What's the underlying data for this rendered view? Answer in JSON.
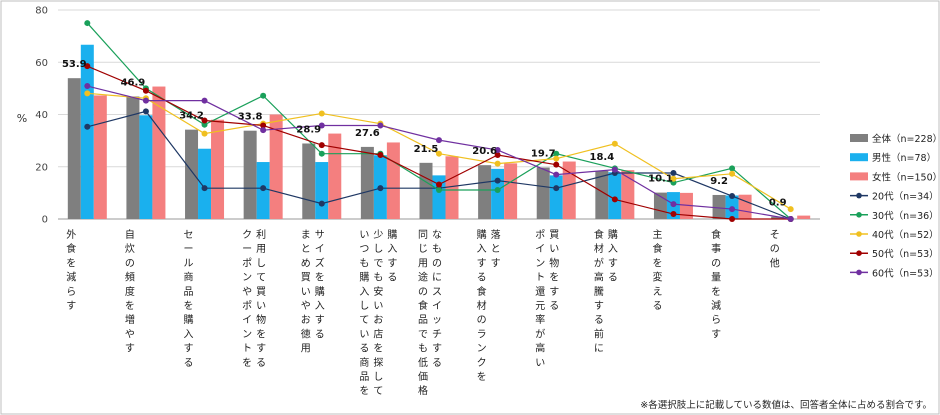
{
  "chart_data": {
    "type": "bar+line",
    "ylabel": "%",
    "ylim": [
      0,
      80
    ],
    "yticks": [
      0,
      20,
      40,
      60,
      80
    ],
    "grid": true,
    "legend_position": "right",
    "categories": [
      "外\n食\nを\n減\nら\nす",
      "自\n炊\nの\n頻\n度\nを\n増\nや\nす",
      "セ\nー\nル\n商\n品\nを\n購\n入\nす\nる",
      "ク\nー\nポ\nン\nや\nポ\nイ\nン\nト\nを|利\n用\nし\nて\n買\nい\n物\nを\nす\nる",
      "ま\nと\nめ\n買\nい\nや\nお\n徳\n用|サ\nイ\nズ\nを\n購\n入\nす\nる",
      "い\nつ\nも\n購\n入\nし\nて\nい\nる\n商\n品\nを|少\nし\nで\nも\n安\nい\nお\n店\nを\n探\nし\nて|購\n入\nす\nる",
      "同\nじ\n用\n途\nの\n食\n品\nで\nも\n低\n価\n格|な\nも\nの\nに\nス\nイ\nッ\nチ\nす\nる",
      "購\n入\nす\nる\n食\n材\nの\nラ\nン\nク\nを|落\nと\nす",
      "ポ\nイ\nン\nト\n還\n元\n率\nが\n高\nい|買\nい\n物\nを\nす\nる",
      "食\n材\nが\n高\n騰\nす\nる\n前\nに|購\n入\nす\nる",
      "主\n食\nを\n変\nえ\nる",
      "食\n事\nの\n量\nを\n減\nら\nす",
      "そ\nの\n他"
    ],
    "data_labels": [
      "53.9",
      "46.9",
      "34.2",
      "33.8",
      "28.9",
      "27.6",
      "21.5",
      "20.6",
      "19.7",
      "18.4",
      "10.1",
      "9.2",
      "0.9"
    ],
    "bar_series": [
      {
        "name": "全体（n=228）",
        "color": "#7f7f7f",
        "values": [
          53.9,
          46.9,
          34.2,
          33.8,
          28.9,
          27.6,
          21.5,
          20.6,
          19.7,
          18.4,
          10.1,
          9.2,
          0.9
        ]
      },
      {
        "name": "男性（n=78）",
        "color": "#1ab0ee",
        "values": [
          66.7,
          39.7,
          26.9,
          21.8,
          21.8,
          24.4,
          16.7,
          19.2,
          16.7,
          17.9,
          10.3,
          9.0,
          0.0
        ]
      },
      {
        "name": "女性（n=150）",
        "color": "#f47f7f",
        "values": [
          47.3,
          50.7,
          38.0,
          40.0,
          32.7,
          29.3,
          24.0,
          21.3,
          22.0,
          18.7,
          10.0,
          9.3,
          1.3
        ]
      }
    ],
    "line_series": [
      {
        "name": "20代（n=34）",
        "color": "#1f3864",
        "values": [
          35.3,
          41.2,
          11.8,
          11.8,
          5.9,
          11.8,
          11.8,
          14.7,
          11.8,
          17.6,
          17.6,
          8.8,
          0.0
        ]
      },
      {
        "name": "30代（n=36）",
        "color": "#1aa05a",
        "values": [
          75.0,
          50.0,
          36.1,
          47.2,
          25.0,
          25.0,
          11.1,
          11.1,
          25.0,
          19.4,
          13.9,
          19.4,
          0.0
        ]
      },
      {
        "name": "40代（n=52）",
        "color": "#f0c020",
        "values": [
          48.1,
          46.2,
          32.7,
          36.5,
          40.4,
          36.5,
          25.0,
          21.2,
          23.1,
          28.8,
          15.4,
          17.3,
          3.8
        ]
      },
      {
        "name": "50代（n=53）",
        "color": "#a00000",
        "values": [
          58.5,
          49.1,
          37.7,
          35.8,
          28.3,
          24.5,
          13.2,
          24.5,
          20.8,
          7.5,
          1.9,
          0.0,
          0.0
        ]
      },
      {
        "name": "60代（n=53）",
        "color": "#7030a0",
        "values": [
          50.9,
          45.3,
          45.3,
          34.0,
          35.8,
          35.8,
          30.2,
          26.4,
          17.0,
          18.9,
          5.7,
          3.8,
          0.0
        ]
      }
    ]
  },
  "footnote": "※各選択肢上に記載している数値は、回答者全体に占める割合です。"
}
